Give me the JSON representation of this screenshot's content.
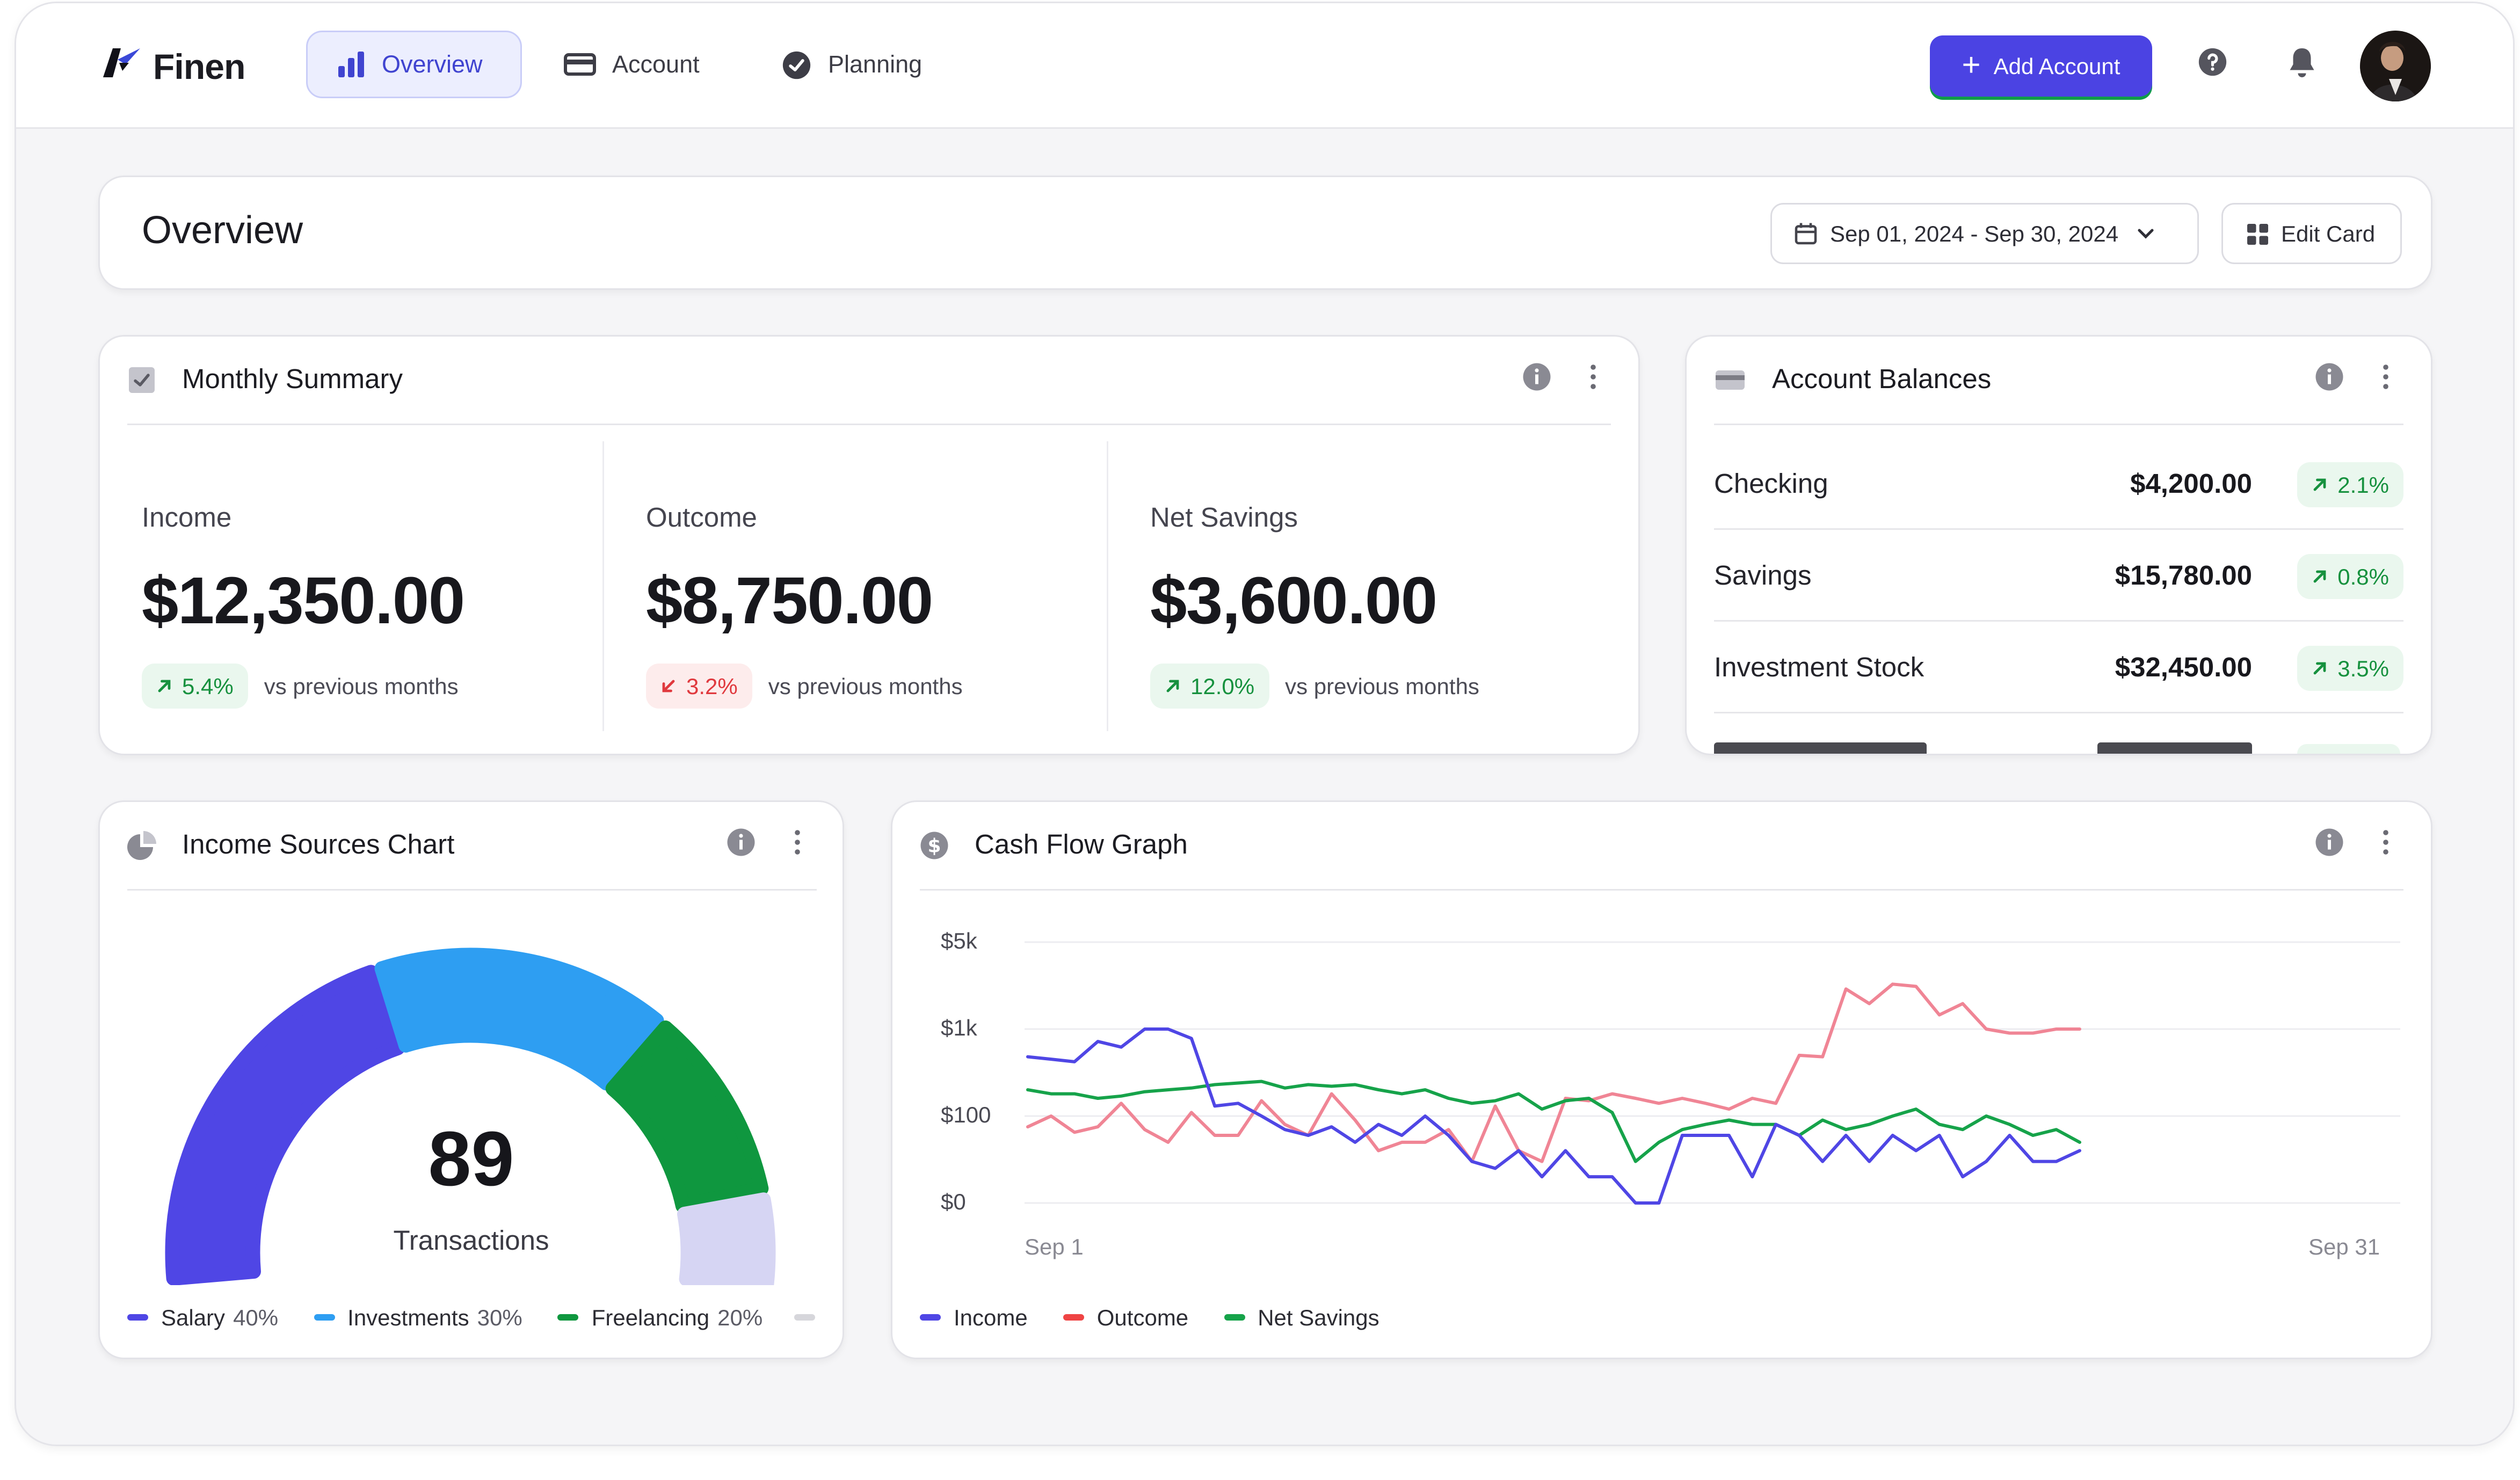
{
  "app": {
    "name": "Finen"
  },
  "nav": {
    "items": [
      {
        "label": "Overview",
        "icon": "bar-chart-icon",
        "active": true
      },
      {
        "label": "Account",
        "icon": "credit-card-icon",
        "active": false
      },
      {
        "label": "Planning",
        "icon": "check-circle-icon",
        "active": false
      }
    ]
  },
  "header": {
    "add_account_label": "Add Account",
    "help_icon": "question-circle-icon",
    "notifications_icon": "bell-icon"
  },
  "overview": {
    "title": "Overview",
    "date_range": "Sep 01, 2024 - Sep 30, 2024",
    "edit_label": "Edit Card"
  },
  "monthly_summary": {
    "title": "Monthly Summary",
    "metrics": [
      {
        "label": "Income",
        "value": "$12,350.00",
        "change": "5.4%",
        "direction": "up",
        "note": "vs previous months"
      },
      {
        "label": "Outcome",
        "value": "$8,750.00",
        "change": "3.2%",
        "direction": "down",
        "note": "vs previous months"
      },
      {
        "label": "Net Savings",
        "value": "$3,600.00",
        "change": "12.0%",
        "direction": "up",
        "note": "vs previous months"
      }
    ]
  },
  "account_balances": {
    "title": "Account Balances",
    "rows": [
      {
        "name": "Checking",
        "amount": "$4,200.00",
        "change": "2.1%"
      },
      {
        "name": "Savings",
        "amount": "$15,780.00",
        "change": "0.8%"
      },
      {
        "name": "Investment Stock",
        "amount": "$32,450.00",
        "change": "3.5%"
      }
    ]
  },
  "income_sources": {
    "title": "Income Sources Chart",
    "total": "89",
    "total_label": "Transactions",
    "legend": [
      {
        "name": "Salary",
        "pct": "40%",
        "color": "#4f46e5"
      },
      {
        "name": "Investments",
        "pct": "30%",
        "color": "#2e9ef2"
      },
      {
        "name": "Freelancing",
        "pct": "20%",
        "color": "#0f973f"
      }
    ],
    "remainder_color": "#d6d5f3"
  },
  "cash_flow": {
    "title": "Cash Flow Graph",
    "y_ticks": [
      "$5k",
      "$1k",
      "$100",
      "$0"
    ],
    "x_start": "Sep 1",
    "x_end": "Sep 31",
    "legend": [
      {
        "name": "Income",
        "color": "#4f46e5"
      },
      {
        "name": "Outcome",
        "color": "#ef4444"
      },
      {
        "name": "Net Savings",
        "color": "#16a34a"
      }
    ]
  },
  "chart_data": [
    {
      "type": "pie",
      "variant": "semicircle-gauge",
      "categories": [
        "Salary",
        "Investments",
        "Freelancing"
      ],
      "values": [
        40,
        30,
        20
      ],
      "center_value": 89,
      "center_label": "Transactions"
    },
    {
      "type": "line",
      "y_scale": "log",
      "y_tick_labels": [
        "$0",
        "$100",
        "$1k",
        "$5k"
      ],
      "x_start_label": "Sep 1",
      "x_end_label": "Sep 31",
      "x": [
        1,
        2,
        3,
        4,
        5,
        6,
        7,
        8,
        9,
        10,
        11,
        12,
        13,
        14,
        15,
        16,
        17,
        18,
        19,
        20,
        21,
        22,
        23,
        24,
        25,
        26,
        27,
        28,
        29,
        30,
        31,
        32,
        33,
        34,
        35,
        36,
        37,
        38,
        39,
        40,
        41,
        42,
        43,
        44,
        45,
        46
      ],
      "series": [
        {
          "name": "Income",
          "color": "#4f46e5",
          "values": [
            480,
            450,
            420,
            720,
            620,
            1000,
            1000,
            780,
            130,
            140,
            100,
            70,
            60,
            75,
            50,
            80,
            60,
            100,
            60,
            30,
            25,
            40,
            20,
            40,
            20,
            20,
            10,
            10,
            60,
            60,
            60,
            20,
            80,
            60,
            30,
            60,
            30,
            60,
            40,
            60,
            20,
            30,
            60,
            30,
            30,
            40
          ]
        },
        {
          "name": "Outcome",
          "color": "#f08595",
          "values": [
            75,
            100,
            65,
            75,
            140,
            70,
            50,
            110,
            60,
            60,
            150,
            80,
            60,
            180,
            90,
            40,
            50,
            50,
            70,
            30,
            130,
            40,
            30,
            160,
            150,
            180,
            160,
            140,
            160,
            140,
            120,
            160,
            140,
            500,
            480,
            2100,
            1600,
            2300,
            2200,
            1300,
            1600,
            1000,
            900,
            900,
            1000,
            1000
          ]
        },
        {
          "name": "Net Savings",
          "color": "#16a34a",
          "values": [
            200,
            180,
            180,
            160,
            170,
            190,
            200,
            210,
            230,
            240,
            250,
            210,
            230,
            220,
            230,
            200,
            180,
            200,
            160,
            140,
            150,
            180,
            120,
            150,
            160,
            110,
            30,
            50,
            70,
            80,
            90,
            80,
            80,
            60,
            90,
            70,
            80,
            100,
            120,
            80,
            70,
            100,
            80,
            60,
            70,
            50
          ]
        }
      ]
    }
  ]
}
